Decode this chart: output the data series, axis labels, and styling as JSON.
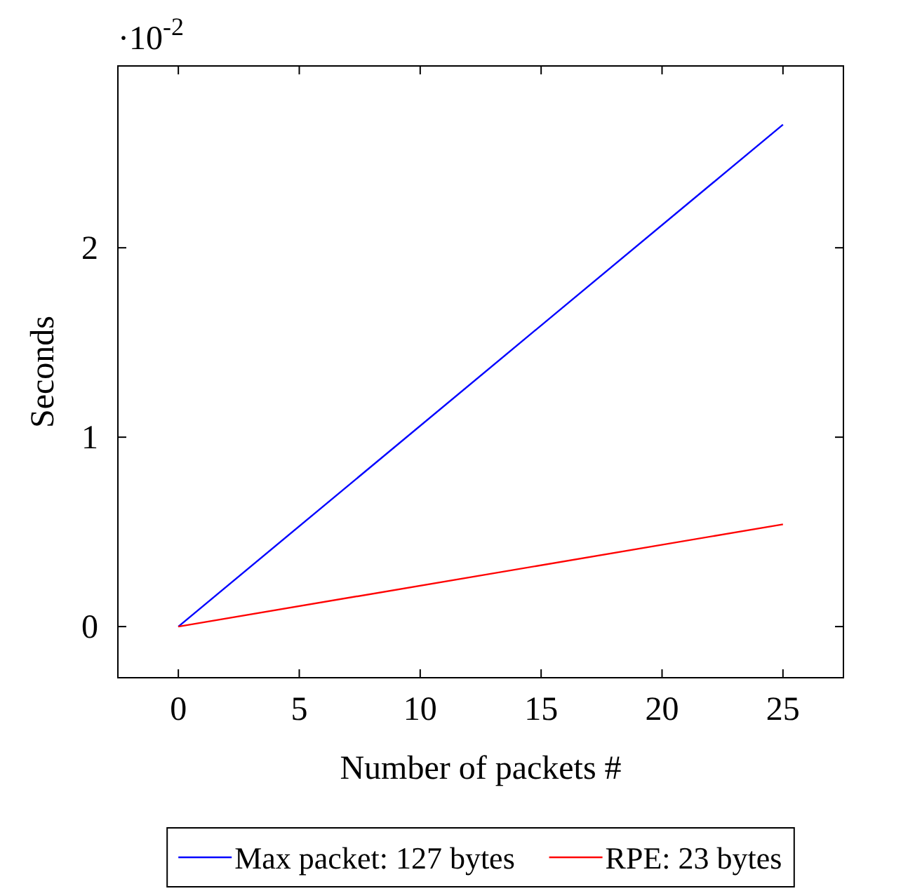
{
  "chart_data": {
    "type": "line",
    "xlabel": "Number of packets #",
    "ylabel": "Seconds",
    "annotations": [
      "·10$^{-2}$"
    ],
    "x": [
      0,
      25
    ],
    "series": [
      {
        "name": "Max packet: 127 bytes",
        "color": "#0000ff",
        "values": [
          0,
          2.65
        ]
      },
      {
        "name": "RPE: 23 bytes",
        "color": "#ff0000",
        "values": [
          0,
          0.54
        ]
      }
    ],
    "xlim": [
      -2.5,
      27.5
    ],
    "ylim": [
      -0.27,
      2.96
    ],
    "xticks": [
      0,
      5,
      10,
      15,
      20,
      25
    ],
    "yticks": [
      0,
      1,
      2
    ],
    "grid": false,
    "legend": "bottom",
    "marker": "none",
    "line_style": "solid"
  }
}
